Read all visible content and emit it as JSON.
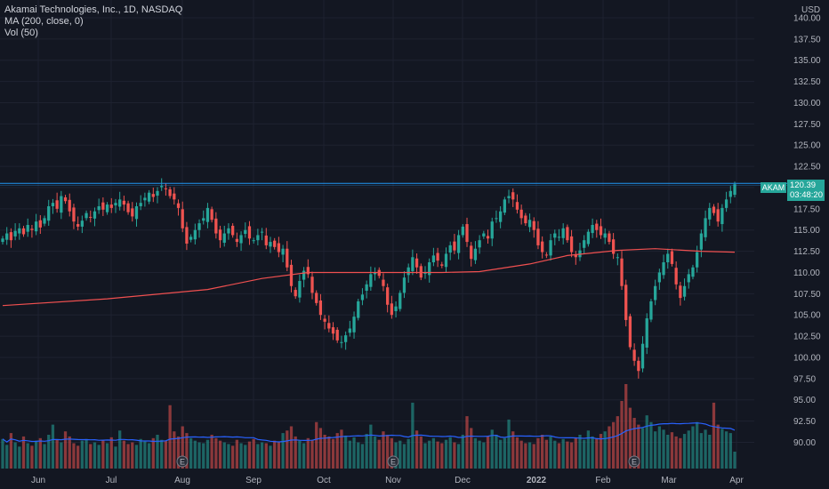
{
  "legend": {
    "symbol": "Akamai Technologies, Inc., 1D, NASDAQ",
    "ma": "MA (200, close, 0)",
    "vol": "Vol (50)"
  },
  "axis": {
    "unit": "USD"
  },
  "last": {
    "symbol": "AKAM",
    "price": "120.39",
    "countdown": "03:48:20"
  },
  "colors": {
    "bg": "#131722",
    "up": "#26a69a",
    "down": "#ef5350",
    "ma": "#f05050",
    "volma": "#2962ff",
    "grid": "#1e2230",
    "hline": "#2196f3"
  },
  "chart_data": {
    "type": "candlestick",
    "title": "Akamai Technologies, Inc., 1D, NASDAQ",
    "ylim": [
      88.0,
      140.0
    ],
    "y_ticks": [
      "140.00",
      "137.50",
      "135.00",
      "132.50",
      "130.00",
      "127.50",
      "125.00",
      "122.50",
      "120.00",
      "117.50",
      "115.00",
      "112.50",
      "110.00",
      "107.50",
      "105.00",
      "102.50",
      "100.00",
      "97.50",
      "95.00",
      "92.50",
      "90.00"
    ],
    "x_ticks": [
      "Jun",
      "Jul",
      "Aug",
      "Sep",
      "Oct",
      "Nov",
      "Dec",
      "2022",
      "Feb",
      "Mar",
      "Apr"
    ],
    "horizontal_line": 120.39,
    "ma200_points": [
      {
        "x": "2021-05-20",
        "y": 106.1
      },
      {
        "x": "2021-07-01",
        "y": 106.9
      },
      {
        "x": "2021-08-10",
        "y": 108.0
      },
      {
        "x": "2021-09-01",
        "y": 109.3
      },
      {
        "x": "2021-09-20",
        "y": 110.0
      },
      {
        "x": "2021-10-15",
        "y": 110.0
      },
      {
        "x": "2021-11-15",
        "y": 110.0
      },
      {
        "x": "2021-12-01",
        "y": 110.1
      },
      {
        "x": "2021-12-20",
        "y": 111.0
      },
      {
        "x": "2022-01-05",
        "y": 112.0
      },
      {
        "x": "2022-01-25",
        "y": 112.6
      },
      {
        "x": "2022-02-10",
        "y": 112.8
      },
      {
        "x": "2022-03-01",
        "y": 112.5
      },
      {
        "x": "2022-03-29",
        "y": 112.4
      }
    ],
    "volume_ma_points": [
      {
        "x": "2021-05-20",
        "y": 0.43
      },
      {
        "x": "2021-06-10",
        "y": 0.4
      },
      {
        "x": "2021-07-15",
        "y": 0.35
      },
      {
        "x": "2021-08-15",
        "y": 0.33
      },
      {
        "x": "2021-09-15",
        "y": 0.35
      },
      {
        "x": "2021-10-15",
        "y": 0.34
      },
      {
        "x": "2021-11-15",
        "y": 0.37
      },
      {
        "x": "2021-12-15",
        "y": 0.39
      },
      {
        "x": "2022-01-15",
        "y": 0.38
      },
      {
        "x": "2022-02-15",
        "y": 0.4
      },
      {
        "x": "2022-03-01",
        "y": 0.45
      },
      {
        "x": "2022-03-29",
        "y": 0.47
      }
    ],
    "earnings_markers": [
      "2021-08-03",
      "2021-11-02",
      "2022-02-15"
    ],
    "series_close": [
      114.0,
      114.6,
      113.8,
      114.9,
      115.2,
      114.5,
      115.6,
      115.0,
      116.0,
      115.3,
      116.4,
      117.8,
      118.2,
      117.5,
      119.0,
      118.4,
      117.2,
      116.0,
      115.4,
      116.1,
      117.0,
      116.5,
      117.2,
      117.8,
      117.4,
      118.0,
      117.6,
      118.2,
      118.6,
      118.0,
      117.1,
      116.6,
      117.8,
      118.2,
      118.8,
      119.4,
      118.9,
      119.6,
      120.2,
      119.8,
      119.0,
      118.6,
      117.6,
      115.2,
      113.4,
      114.2,
      115.0,
      115.8,
      116.4,
      117.6,
      116.2,
      114.6,
      113.8,
      114.6,
      115.2,
      114.4,
      113.6,
      114.4,
      115.0,
      114.0,
      113.8,
      114.4,
      114.8,
      113.2,
      113.6,
      113.0,
      112.4,
      112.8,
      110.6,
      108.4,
      107.2,
      109.0,
      110.2,
      109.8,
      107.6,
      106.4,
      105.0,
      104.2,
      103.4,
      102.8,
      102.0,
      101.8,
      102.6,
      103.4,
      104.8,
      106.6,
      107.4,
      108.6,
      109.8,
      110.0,
      109.6,
      108.4,
      106.2,
      105.0,
      106.0,
      107.6,
      109.4,
      110.6,
      111.8,
      110.6,
      109.4,
      110.0,
      111.2,
      112.0,
      111.4,
      110.8,
      112.2,
      113.2,
      112.6,
      114.4,
      115.4,
      113.6,
      111.6,
      112.8,
      113.8,
      114.6,
      114.0,
      116.0,
      116.4,
      117.2,
      118.6,
      119.0,
      118.6,
      117.4,
      116.4,
      115.8,
      116.2,
      115.0,
      113.2,
      112.4,
      112.0,
      113.8,
      114.6,
      114.2,
      115.2,
      113.8,
      112.4,
      111.8,
      112.6,
      113.8,
      114.8,
      115.6,
      115.0,
      114.4,
      114.6,
      113.6,
      112.2,
      111.8,
      108.4,
      104.4,
      101.2,
      99.6,
      98.4,
      101.6,
      104.6,
      106.6,
      108.4,
      110.0,
      111.2,
      112.2,
      111.0,
      108.6,
      107.0,
      108.4,
      109.8,
      110.6,
      112.4,
      114.6,
      116.4,
      117.6,
      117.0,
      116.0,
      117.6,
      118.6,
      119.6,
      120.39
    ],
    "series_volume": [
      0.35,
      0.28,
      0.42,
      0.31,
      0.26,
      0.38,
      0.3,
      0.27,
      0.33,
      0.36,
      0.29,
      0.4,
      0.52,
      0.34,
      0.31,
      0.44,
      0.38,
      0.3,
      0.27,
      0.33,
      0.35,
      0.29,
      0.31,
      0.28,
      0.34,
      0.3,
      0.37,
      0.26,
      0.45,
      0.33,
      0.29,
      0.31,
      0.28,
      0.35,
      0.32,
      0.3,
      0.36,
      0.4,
      0.34,
      0.33,
      0.75,
      0.44,
      0.38,
      0.5,
      0.42,
      0.36,
      0.33,
      0.31,
      0.3,
      0.34,
      0.4,
      0.36,
      0.33,
      0.31,
      0.29,
      0.27,
      0.34,
      0.3,
      0.28,
      0.32,
      0.35,
      0.29,
      0.31,
      0.3,
      0.27,
      0.33,
      0.31,
      0.42,
      0.45,
      0.5,
      0.38,
      0.33,
      0.3,
      0.36,
      0.34,
      0.55,
      0.48,
      0.4,
      0.38,
      0.35,
      0.42,
      0.46,
      0.39,
      0.33,
      0.37,
      0.31,
      0.29,
      0.41,
      0.52,
      0.38,
      0.34,
      0.44,
      0.4,
      0.36,
      0.31,
      0.33,
      0.29,
      0.35,
      0.78,
      0.45,
      0.38,
      0.3,
      0.33,
      0.36,
      0.32,
      0.3,
      0.34,
      0.37,
      0.31,
      0.29,
      0.4,
      0.62,
      0.48,
      0.36,
      0.33,
      0.31,
      0.38,
      0.46,
      0.4,
      0.34,
      0.36,
      0.58,
      0.44,
      0.37,
      0.33,
      0.3,
      0.31,
      0.29,
      0.36,
      0.4,
      0.34,
      0.38,
      0.33,
      0.3,
      0.35,
      0.32,
      0.31,
      0.36,
      0.4,
      0.34,
      0.45,
      0.38,
      0.36,
      0.41,
      0.44,
      0.5,
      0.55,
      0.62,
      0.8,
      1.0,
      0.72,
      0.6,
      0.52,
      0.48,
      0.63,
      0.55,
      0.44,
      0.5,
      0.46,
      0.4,
      0.43,
      0.38,
      0.36,
      0.41,
      0.45,
      0.5,
      0.55,
      0.42,
      0.46,
      0.4,
      0.78,
      0.52,
      0.47,
      0.44,
      0.42,
      0.2
    ]
  }
}
